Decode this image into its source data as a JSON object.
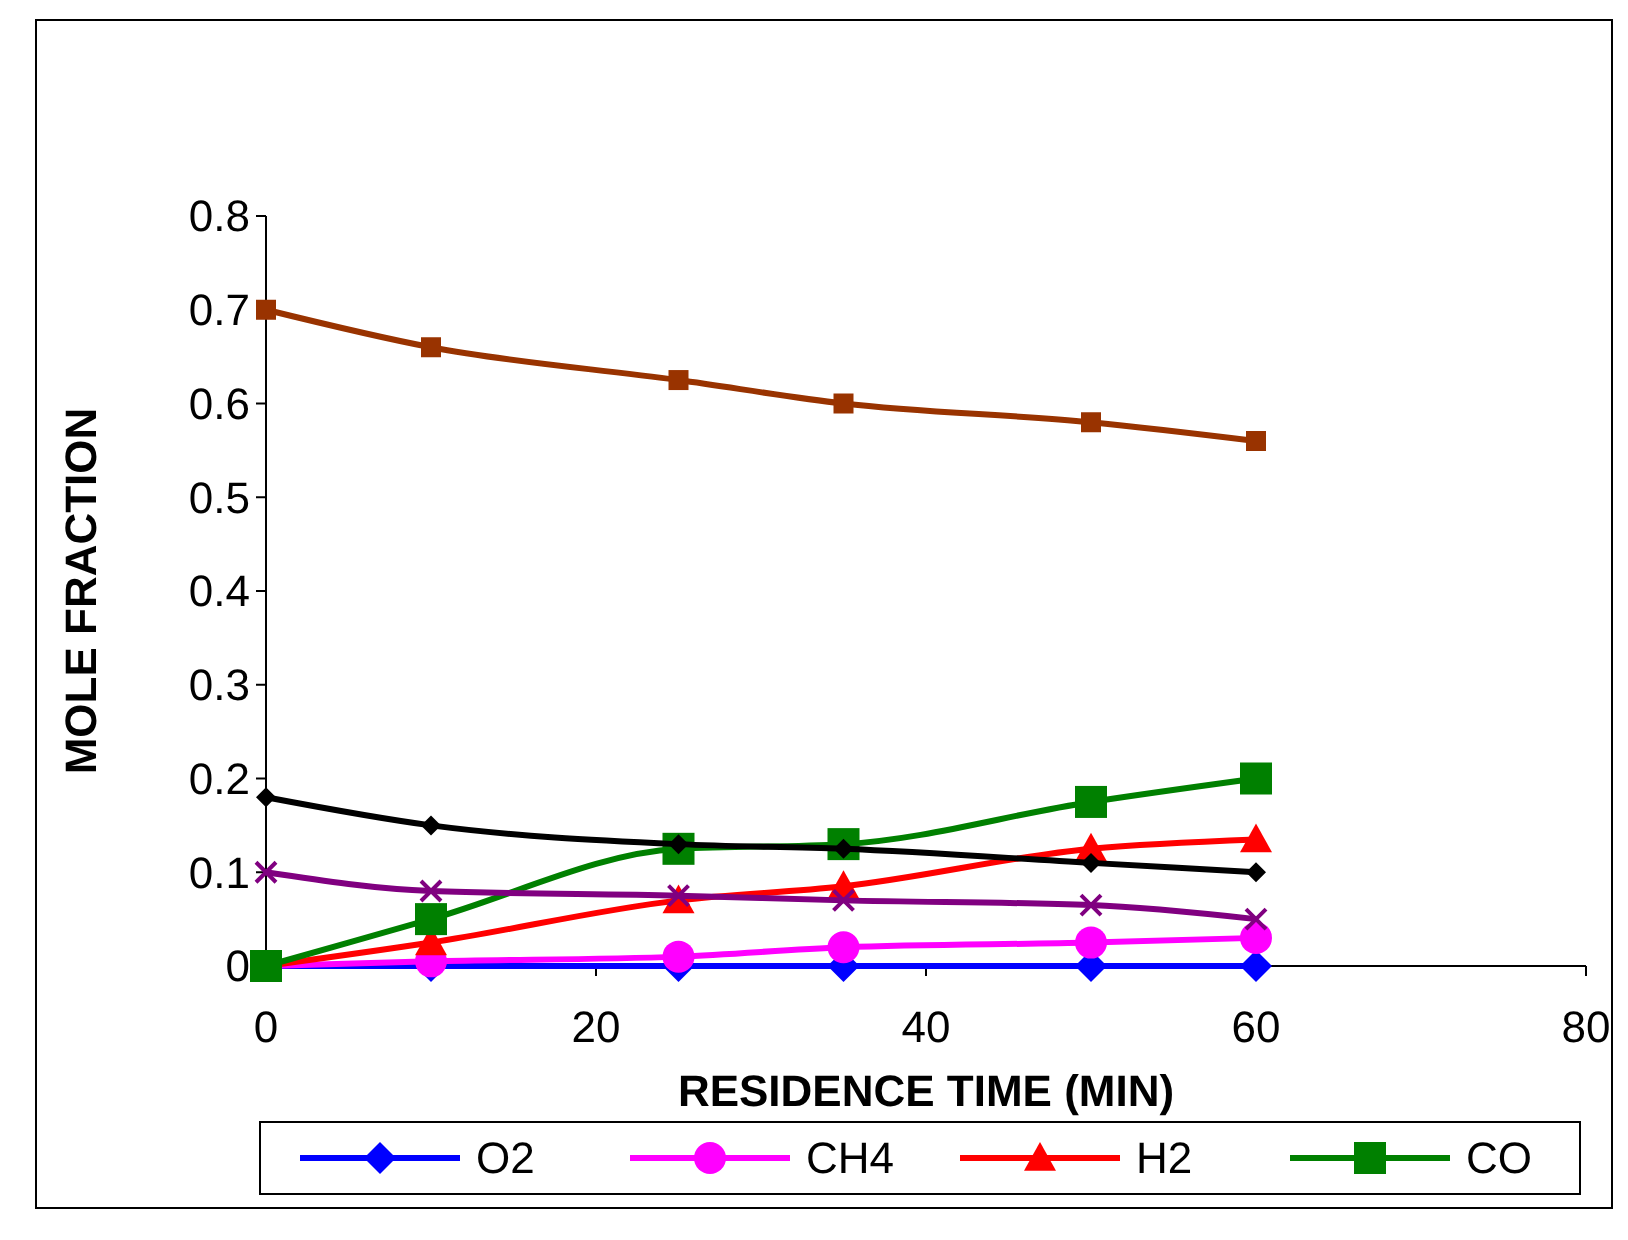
{
  "chart_data": {
    "type": "line",
    "xlabel": "RESIDENCE TIME (MIN)",
    "ylabel": "MOLE FRACTION",
    "x": [
      0,
      10,
      25,
      35,
      50,
      60
    ],
    "xlim": [
      0,
      80
    ],
    "xticks": [
      0,
      20,
      40,
      60,
      80
    ],
    "ylim": [
      0,
      0.8
    ],
    "yticks": [
      0,
      0.1,
      0.2,
      0.3,
      0.4,
      0.5,
      0.6,
      0.7,
      0.8
    ],
    "grid": false,
    "legend": "bottom",
    "series": [
      {
        "name": "O2",
        "color": "#0000ff",
        "marker": "diamond",
        "values": [
          0,
          0,
          0,
          0,
          0,
          0
        ]
      },
      {
        "name": "CH4",
        "color": "#ff00ff",
        "marker": "circle",
        "values": [
          0,
          0.005,
          0.01,
          0.02,
          0.025,
          0.03
        ]
      },
      {
        "name": "H2",
        "color": "#ff0000",
        "marker": "triangle",
        "values": [
          0,
          0.025,
          0.07,
          0.085,
          0.125,
          0.135
        ]
      },
      {
        "name": "CO",
        "color": "#008000",
        "marker": "square",
        "values": [
          0,
          0.05,
          0.125,
          0.13,
          0.175,
          0.2
        ]
      },
      {
        "color": "#993300",
        "marker": "square",
        "values": [
          0.7,
          0.66,
          0.625,
          0.6,
          0.58,
          0.56
        ]
      },
      {
        "color": "#000000",
        "marker": "diamond",
        "values": [
          0.18,
          0.15,
          0.13,
          0.125,
          0.11,
          0.1
        ]
      },
      {
        "color": "#800080",
        "marker": "cross",
        "values": [
          0.1,
          0.08,
          0.075,
          0.07,
          0.065,
          0.05
        ]
      }
    ]
  }
}
